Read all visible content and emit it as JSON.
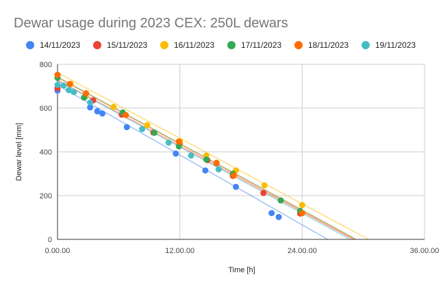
{
  "chart_data": {
    "type": "scatter",
    "title": "Dewar usage during 2023 CEX: 250L dewars",
    "xlabel": "Time [h]",
    "ylabel": "Dewar level [mm]",
    "xlim": [
      0,
      36
    ],
    "ylim": [
      0,
      800
    ],
    "x_ticks": [
      "0.00.00",
      "12.00.00",
      "24.00.00",
      "36.00.00"
    ],
    "y_ticks": [
      "0",
      "200",
      "400",
      "600",
      "800"
    ],
    "grid": true,
    "legend": "top",
    "trendlines": true,
    "series": [
      {
        "name": "14/11/2023",
        "color": "#4285f4",
        "points": [
          [
            0.0,
            680
          ],
          [
            3.2,
            603
          ],
          [
            3.9,
            585
          ],
          [
            4.4,
            575
          ],
          [
            6.8,
            513
          ],
          [
            11.6,
            392
          ],
          [
            14.5,
            315
          ],
          [
            17.5,
            240
          ],
          [
            21.0,
            120
          ],
          [
            21.7,
            102
          ]
        ],
        "trend": {
          "start": [
            0,
            705
          ],
          "end": [
            26.5,
            0
          ]
        }
      },
      {
        "name": "15/11/2023",
        "color": "#ea4335",
        "points": [
          [
            0.0,
            690
          ],
          [
            2.7,
            652
          ],
          [
            3.5,
            635
          ],
          [
            6.3,
            570
          ],
          [
            9.4,
            488
          ],
          [
            12.0,
            440
          ],
          [
            14.7,
            362
          ],
          [
            15.6,
            348
          ],
          [
            17.2,
            290
          ],
          [
            20.2,
            212
          ],
          [
            23.8,
            118
          ]
        ],
        "trend": {
          "start": [
            0,
            728
          ],
          "end": [
            29.0,
            0
          ]
        }
      },
      {
        "name": "16/11/2023",
        "color": "#fbbc04",
        "points": [
          [
            0.0,
            738
          ],
          [
            1.3,
            710
          ],
          [
            2.7,
            650
          ],
          [
            5.5,
            605
          ],
          [
            8.8,
            522
          ],
          [
            12.0,
            448
          ],
          [
            14.6,
            383
          ],
          [
            17.5,
            315
          ],
          [
            20.3,
            247
          ],
          [
            24.0,
            157
          ]
        ],
        "trend": {
          "start": [
            0,
            762
          ],
          "end": [
            30.5,
            0
          ]
        }
      },
      {
        "name": "17/11/2023",
        "color": "#34a853",
        "points": [
          [
            0.0,
            738
          ],
          [
            2.6,
            648
          ],
          [
            6.4,
            580
          ],
          [
            9.5,
            487
          ],
          [
            11.9,
            425
          ],
          [
            14.6,
            365
          ],
          [
            17.2,
            300
          ],
          [
            21.9,
            178
          ],
          [
            23.8,
            130
          ]
        ],
        "trend": {
          "start": [
            0,
            742
          ],
          "end": [
            29.3,
            0
          ]
        }
      },
      {
        "name": "18/11/2023",
        "color": "#ff6d01",
        "points": [
          [
            0.0,
            752
          ],
          [
            1.2,
            710
          ],
          [
            2.8,
            667
          ],
          [
            6.7,
            568
          ],
          [
            11.9,
            447
          ],
          [
            15.6,
            350
          ],
          [
            17.3,
            292
          ],
          [
            24.0,
            120
          ]
        ],
        "trend": {
          "start": [
            0,
            740
          ],
          "end": [
            29.2,
            0
          ]
        }
      },
      {
        "name": "19/11/2023",
        "color": "#46bdc6",
        "points": [
          [
            0.0,
            706
          ],
          [
            0.6,
            703
          ],
          [
            1.1,
            682
          ],
          [
            1.6,
            673
          ],
          [
            3.2,
            625
          ],
          [
            8.3,
            504
          ],
          [
            10.9,
            442
          ],
          [
            13.1,
            383
          ],
          [
            15.8,
            320
          ]
        ],
        "trend": {
          "start": [
            0,
            725
          ],
          "end": [
            28.7,
            0
          ]
        }
      }
    ]
  }
}
